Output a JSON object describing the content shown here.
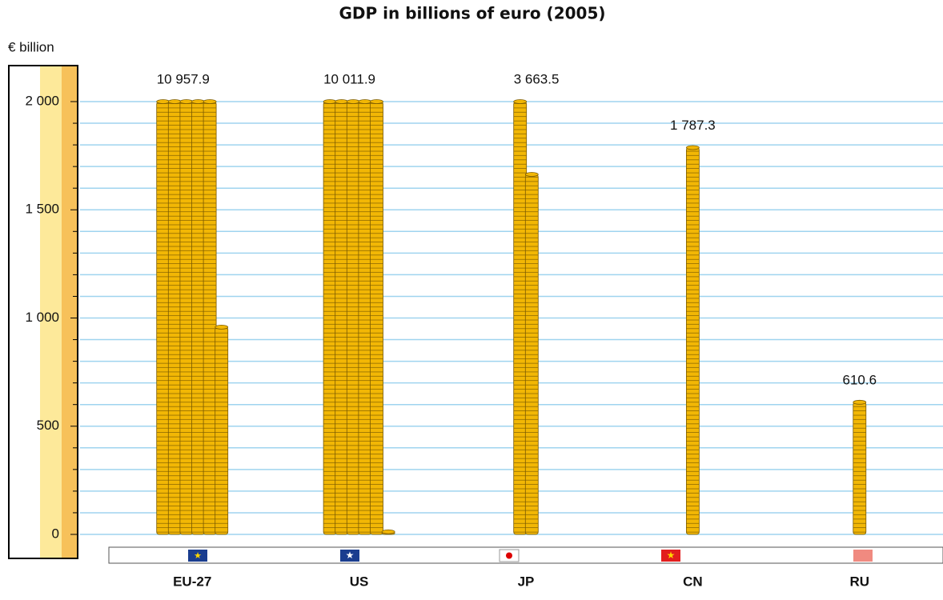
{
  "chart_data": {
    "type": "coin-stack",
    "title": "GDP in billions of euro (2005)",
    "y_label": "€ billion",
    "categories": [
      "EU-27",
      "US",
      "JP",
      "CN",
      "RU"
    ],
    "values": [
      10957.9,
      10011.9,
      3663.5,
      1787.3,
      610.6
    ],
    "value_labels": [
      "10 957.9",
      "10 011.9",
      "3 663.5",
      "1 787.3",
      "610.6"
    ],
    "color": "#f2b705",
    "ylim": [
      0,
      2000
    ],
    "yticks": [
      0,
      500,
      {
        "value": 1000,
        "label": "1 000"
      },
      {
        "value": 1500,
        "label": "1 500"
      },
      {
        "value": 2000,
        "label": "2 000"
      }
    ],
    "grid": true
  }
}
